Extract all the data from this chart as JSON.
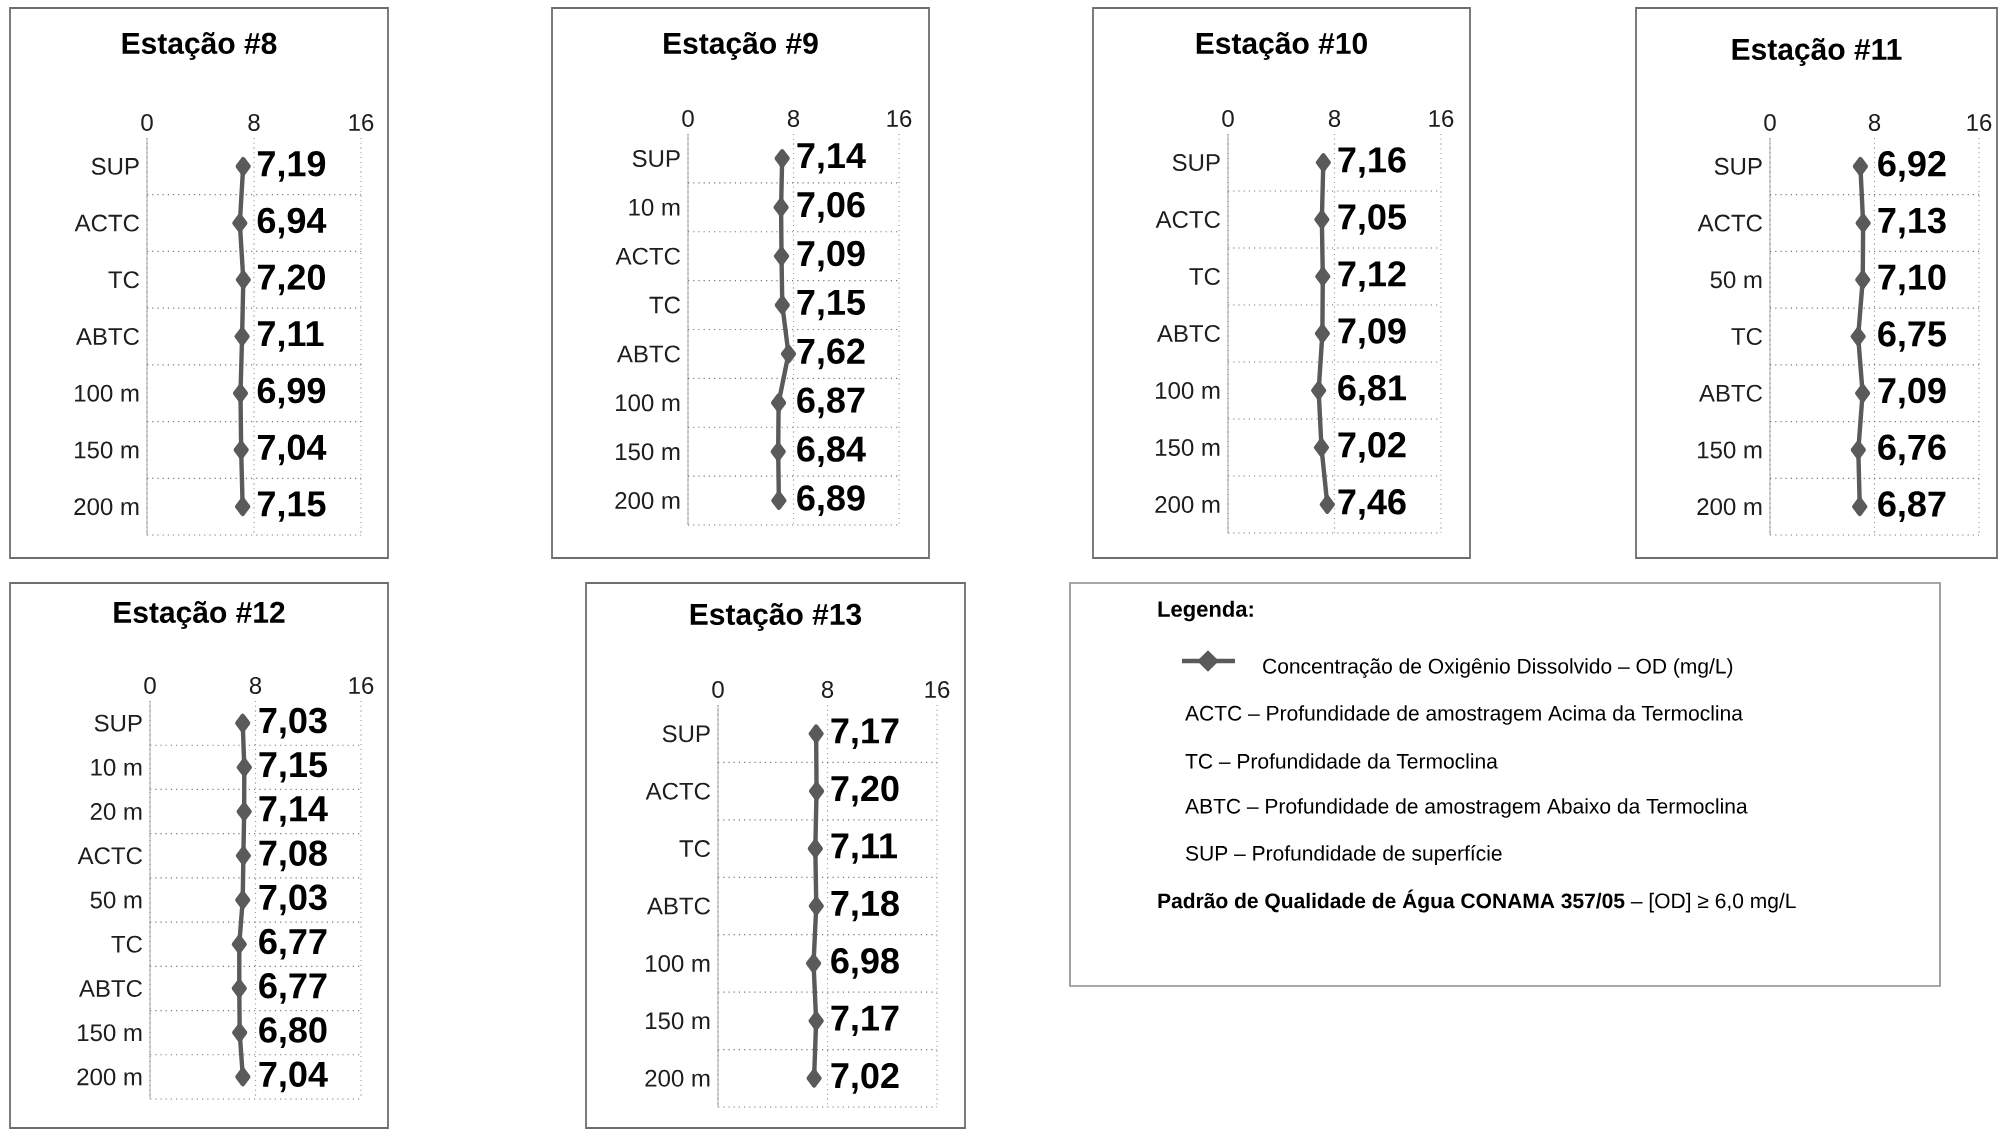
{
  "chart_data": [
    {
      "type": "line",
      "title": "Estação #8",
      "orientation": "horizontal",
      "categories": [
        "SUP",
        "ACTC",
        "TC",
        "ABTC",
        "100 m",
        "150 m",
        "200 m"
      ],
      "values": [
        7.19,
        6.94,
        7.2,
        7.11,
        6.99,
        7.04,
        7.15
      ],
      "value_labels": [
        "7,19",
        "6,94",
        "7,20",
        "7,11",
        "6,99",
        "7,04",
        "7,15"
      ],
      "xlim": [
        0,
        16
      ],
      "xticks": [
        0,
        8,
        16
      ],
      "grid": true,
      "marker": "diamond",
      "color": "#5a5a5a"
    },
    {
      "type": "line",
      "title": "Estação #9",
      "orientation": "horizontal",
      "categories": [
        "SUP",
        "10 m",
        "ACTC",
        "TC",
        "ABTC",
        "100 m",
        "150 m",
        "200 m"
      ],
      "values": [
        7.14,
        7.06,
        7.09,
        7.15,
        7.62,
        6.87,
        6.84,
        6.89
      ],
      "value_labels": [
        "7,14",
        "7,06",
        "7,09",
        "7,15",
        "7,62",
        "6,87",
        "6,84",
        "6,89"
      ],
      "xlim": [
        0,
        16
      ],
      "xticks": [
        0,
        8,
        16
      ],
      "grid": true,
      "marker": "diamond",
      "color": "#5a5a5a"
    },
    {
      "type": "line",
      "title": "Estação #10",
      "orientation": "horizontal",
      "categories": [
        "SUP",
        "ACTC",
        "TC",
        "ABTC",
        "100 m",
        "150 m",
        "200 m"
      ],
      "values": [
        7.16,
        7.05,
        7.12,
        7.09,
        6.81,
        7.02,
        7.46
      ],
      "value_labels": [
        "7,16",
        "7,05",
        "7,12",
        "7,09",
        "6,81",
        "7,02",
        "7,46"
      ],
      "xlim": [
        0,
        16
      ],
      "xticks": [
        0,
        8,
        16
      ],
      "grid": true,
      "marker": "diamond",
      "color": "#5a5a5a"
    },
    {
      "type": "line",
      "title": "Estação #11",
      "orientation": "horizontal",
      "categories": [
        "SUP",
        "ACTC",
        "50 m",
        "TC",
        "ABTC",
        "150 m",
        "200 m"
      ],
      "values": [
        6.92,
        7.13,
        7.1,
        6.75,
        7.09,
        6.76,
        6.87
      ],
      "value_labels": [
        "6,92",
        "7,13",
        "7,10",
        "6,75",
        "7,09",
        "6,76",
        "6,87"
      ],
      "xlim": [
        0,
        16
      ],
      "xticks": [
        0,
        8,
        16
      ],
      "grid": true,
      "marker": "diamond",
      "color": "#5a5a5a"
    },
    {
      "type": "line",
      "title": "Estação #12",
      "orientation": "horizontal",
      "categories": [
        "SUP",
        "10 m",
        "20 m",
        "ACTC",
        "50 m",
        "TC",
        "ABTC",
        "150 m",
        "200 m"
      ],
      "values": [
        7.03,
        7.15,
        7.14,
        7.08,
        7.03,
        6.77,
        6.77,
        6.8,
        7.04
      ],
      "value_labels": [
        "7,03",
        "7,15",
        "7,14",
        "7,08",
        "7,03",
        "6,77",
        "6,77",
        "6,80",
        "7,04"
      ],
      "xlim": [
        0,
        16
      ],
      "xticks": [
        0,
        8,
        16
      ],
      "grid": true,
      "marker": "diamond",
      "color": "#5a5a5a"
    },
    {
      "type": "line",
      "title": "Estação #13",
      "orientation": "horizontal",
      "categories": [
        "SUP",
        "ACTC",
        "TC",
        "ABTC",
        "100 m",
        "150 m",
        "200 m"
      ],
      "values": [
        7.17,
        7.2,
        7.11,
        7.18,
        6.98,
        7.17,
        7.02
      ],
      "value_labels": [
        "7,17",
        "7,20",
        "7,11",
        "7,18",
        "6,98",
        "7,17",
        "7,02"
      ],
      "xlim": [
        0,
        16
      ],
      "xticks": [
        0,
        8,
        16
      ],
      "grid": true,
      "marker": "diamond",
      "color": "#5a5a5a"
    },
    {
      "type": "other",
      "title": "Legenda:",
      "annotations": [
        "Concentração de Oxigênio Dissolvido – OD (mg/L)",
        "ACTC – Profundidade de amostragem Acima da Termoclina",
        "TC – Profundidade da Termoclina",
        "ABTC – Profundidade de amostragem Abaixo da Termoclina",
        "SUP – Profundidade de superfície",
        "**Padrão de Qualidade de Água CONAMA 357/05** – [OD] ≥ 6,0 mg/L"
      ]
    }
  ]
}
